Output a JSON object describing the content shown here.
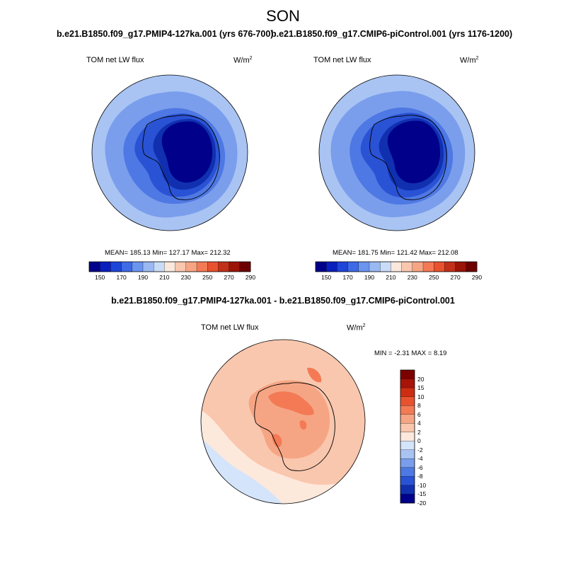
{
  "main_title": "SON",
  "panels": [
    {
      "title": "b.e21.B1850.f09_g17.PMIP4-127ka.001 (yrs 676-700)",
      "variable_label": "TOM net LW flux",
      "units_label": "W/m",
      "units_exponent": "2",
      "stats": "MEAN= 185.13  Min= 127.17  Max= 212.32"
    },
    {
      "title": "b.e21.B1850.f09_g17.CMIP6-piControl.001 (yrs 1176-1200)",
      "variable_label": "TOM net LW flux",
      "units_label": "W/m",
      "units_exponent": "2",
      "stats": "MEAN= 181.75  Min= 121.42  Max= 212.08"
    }
  ],
  "difference_panel": {
    "title": "b.e21.B1850.f09_g17.PMIP4-127ka.001 - b.e21.B1850.f09_g17.CMIP6-piControl.001",
    "variable_label": "TOM net LW flux",
    "units_label": "W/m",
    "units_exponent": "2",
    "stats": "MIN = -2.31 MAX = 8.19"
  },
  "colorbar_abs": {
    "tick_labels": [
      "150",
      "170",
      "190",
      "210",
      "230",
      "250",
      "270",
      "290"
    ],
    "colors": [
      "#00008b",
      "#0a1fbe",
      "#1f45d8",
      "#3e6ae6",
      "#6a94ee",
      "#9ab8f2",
      "#c8dcf8",
      "#fbe8dc",
      "#f9c7ae",
      "#f6a584",
      "#f37a55",
      "#e8522f",
      "#c2301a",
      "#9b1408",
      "#6e0000"
    ]
  },
  "colorbar_diff": {
    "tick_labels": [
      "20",
      "15",
      "10",
      "8",
      "6",
      "4",
      "2",
      "0",
      "-2",
      "-4",
      "-6",
      "-8",
      "-10",
      "-15",
      "-20"
    ],
    "colors": [
      "#7d0000",
      "#a8140a",
      "#cf2d12",
      "#e8522f",
      "#f37a55",
      "#f6a584",
      "#f9c7ae",
      "#fde8dc",
      "#d4e4fa",
      "#a9c4f3",
      "#7a9eec",
      "#4e78e3",
      "#2a52d4",
      "#1030b0",
      "#00008b"
    ]
  },
  "map_colors": {
    "ocean_outer": "#a9c4f3",
    "ocean_mid": "#7a9eec",
    "ocean_inner": "#4e78e3",
    "coast_zone": "#2a52d4",
    "ice_edge": "#1030b0",
    "interior": "#00008b",
    "diff_background": "#f9c7ae",
    "diff_light": "#fde8dc",
    "diff_neg": "#d4e4fa",
    "diff_strong": "#f37a55",
    "diff_mid": "#f6a584"
  }
}
